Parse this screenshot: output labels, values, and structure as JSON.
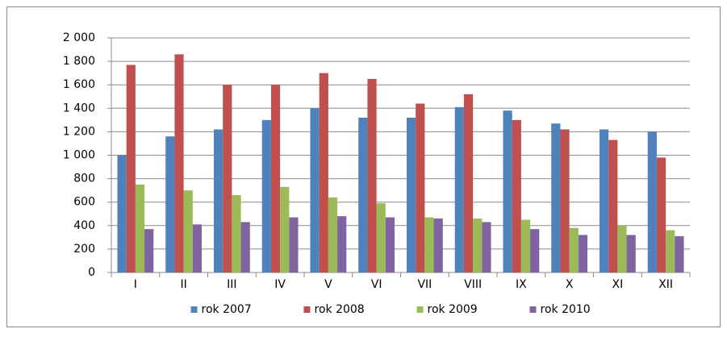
{
  "chart_data": {
    "type": "bar",
    "categories": [
      "I",
      "II",
      "III",
      "IV",
      "V",
      "VI",
      "VII",
      "VIII",
      "IX",
      "X",
      "XI",
      "XII"
    ],
    "series": [
      {
        "name": "rok 2007",
        "color": "#4f81bd",
        "values": [
          1000,
          1160,
          1220,
          1300,
          1400,
          1320,
          1320,
          1410,
          1380,
          1270,
          1220,
          1200
        ]
      },
      {
        "name": "rok 2008",
        "color": "#c0504d",
        "values": [
          1770,
          1860,
          1600,
          1600,
          1700,
          1650,
          1440,
          1520,
          1300,
          1220,
          1130,
          980
        ]
      },
      {
        "name": "rok 2009",
        "color": "#9bbb59",
        "values": [
          750,
          700,
          660,
          730,
          640,
          590,
          470,
          460,
          450,
          380,
          400,
          360
        ]
      },
      {
        "name": "rok 2010",
        "color": "#8064a2",
        "values": [
          370,
          410,
          430,
          470,
          480,
          470,
          460,
          430,
          370,
          320,
          320,
          310
        ]
      }
    ],
    "ylim": [
      0,
      2000
    ],
    "yticks": [
      0,
      200,
      400,
      600,
      800,
      {
        "value": 1000,
        "label": "1 000"
      },
      {
        "value": 1200,
        "label": "1 200"
      },
      {
        "value": 1400,
        "label": "1 400"
      },
      {
        "value": 1600,
        "label": "1 600"
      },
      {
        "value": 1800,
        "label": "1 800"
      },
      {
        "value": 2000,
        "label": "2 000"
      }
    ],
    "grid": true,
    "legend": "bottom"
  }
}
